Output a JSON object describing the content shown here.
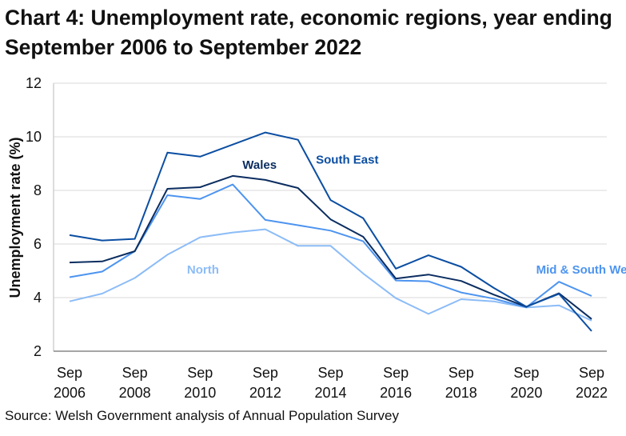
{
  "chart_data": {
    "type": "line",
    "title": "Chart 4: Unemployment rate, economic regions, year ending September 2006 to September 2022",
    "source": "Source: Welsh Government analysis of Annual Population Survey",
    "xlabel": "",
    "ylabel": "Unemployment rate (%)",
    "ylim": [
      2,
      12
    ],
    "yticks": [
      2,
      4,
      6,
      8,
      10,
      12
    ],
    "x": [
      2006,
      2007,
      2008,
      2009,
      2010,
      2011,
      2012,
      2013,
      2014,
      2015,
      2016,
      2017,
      2018,
      2019,
      2020,
      2021,
      2022
    ],
    "xticks": [
      {
        "year": 2006,
        "line1": "Sep",
        "line2": "2006"
      },
      {
        "year": 2008,
        "line1": "Sep",
        "line2": "2008"
      },
      {
        "year": 2010,
        "line1": "Sep",
        "line2": "2010"
      },
      {
        "year": 2012,
        "line1": "Sep",
        "line2": "2012"
      },
      {
        "year": 2014,
        "line1": "Sep",
        "line2": "2014"
      },
      {
        "year": 2016,
        "line1": "Sep",
        "line2": "2016"
      },
      {
        "year": 2018,
        "line1": "Sep",
        "line2": "2018"
      },
      {
        "year": 2020,
        "line1": "Sep",
        "line2": "2020"
      },
      {
        "year": 2022,
        "line1": "Sep",
        "line2": "2022"
      }
    ],
    "grid": true,
    "series": [
      {
        "name": "North",
        "color": "#8cbcf7",
        "label_at": [
          2009.6,
          4.9
        ],
        "values": [
          3.86,
          4.15,
          4.73,
          5.6,
          6.25,
          6.43,
          6.55,
          5.93,
          5.93,
          4.9,
          3.98,
          3.39,
          3.94,
          3.86,
          3.63,
          3.71,
          3.14
        ]
      },
      {
        "name": "Mid & South West",
        "color": "#4d94f0",
        "label_at": [
          2020.3,
          4.9
        ],
        "values": [
          4.76,
          4.97,
          5.73,
          7.82,
          7.68,
          8.22,
          6.9,
          6.7,
          6.5,
          6.1,
          4.64,
          4.61,
          4.19,
          3.96,
          3.64,
          4.59,
          4.06
        ]
      },
      {
        "name": "Wales",
        "color": "#0b2d60",
        "label_at": [
          2011.3,
          8.8
        ],
        "values": [
          5.31,
          5.35,
          5.73,
          8.06,
          8.12,
          8.54,
          8.39,
          8.09,
          6.92,
          6.27,
          4.71,
          4.86,
          4.62,
          4.11,
          3.66,
          4.16,
          3.2
        ]
      },
      {
        "name": "South East",
        "color": "#0b4ea2",
        "label_at": [
          2013.55,
          9.0
        ],
        "values": [
          6.33,
          6.13,
          6.19,
          9.41,
          9.26,
          9.71,
          10.16,
          9.89,
          7.64,
          6.96,
          5.08,
          5.58,
          5.15,
          4.36,
          3.66,
          4.14,
          2.75
        ]
      }
    ]
  }
}
